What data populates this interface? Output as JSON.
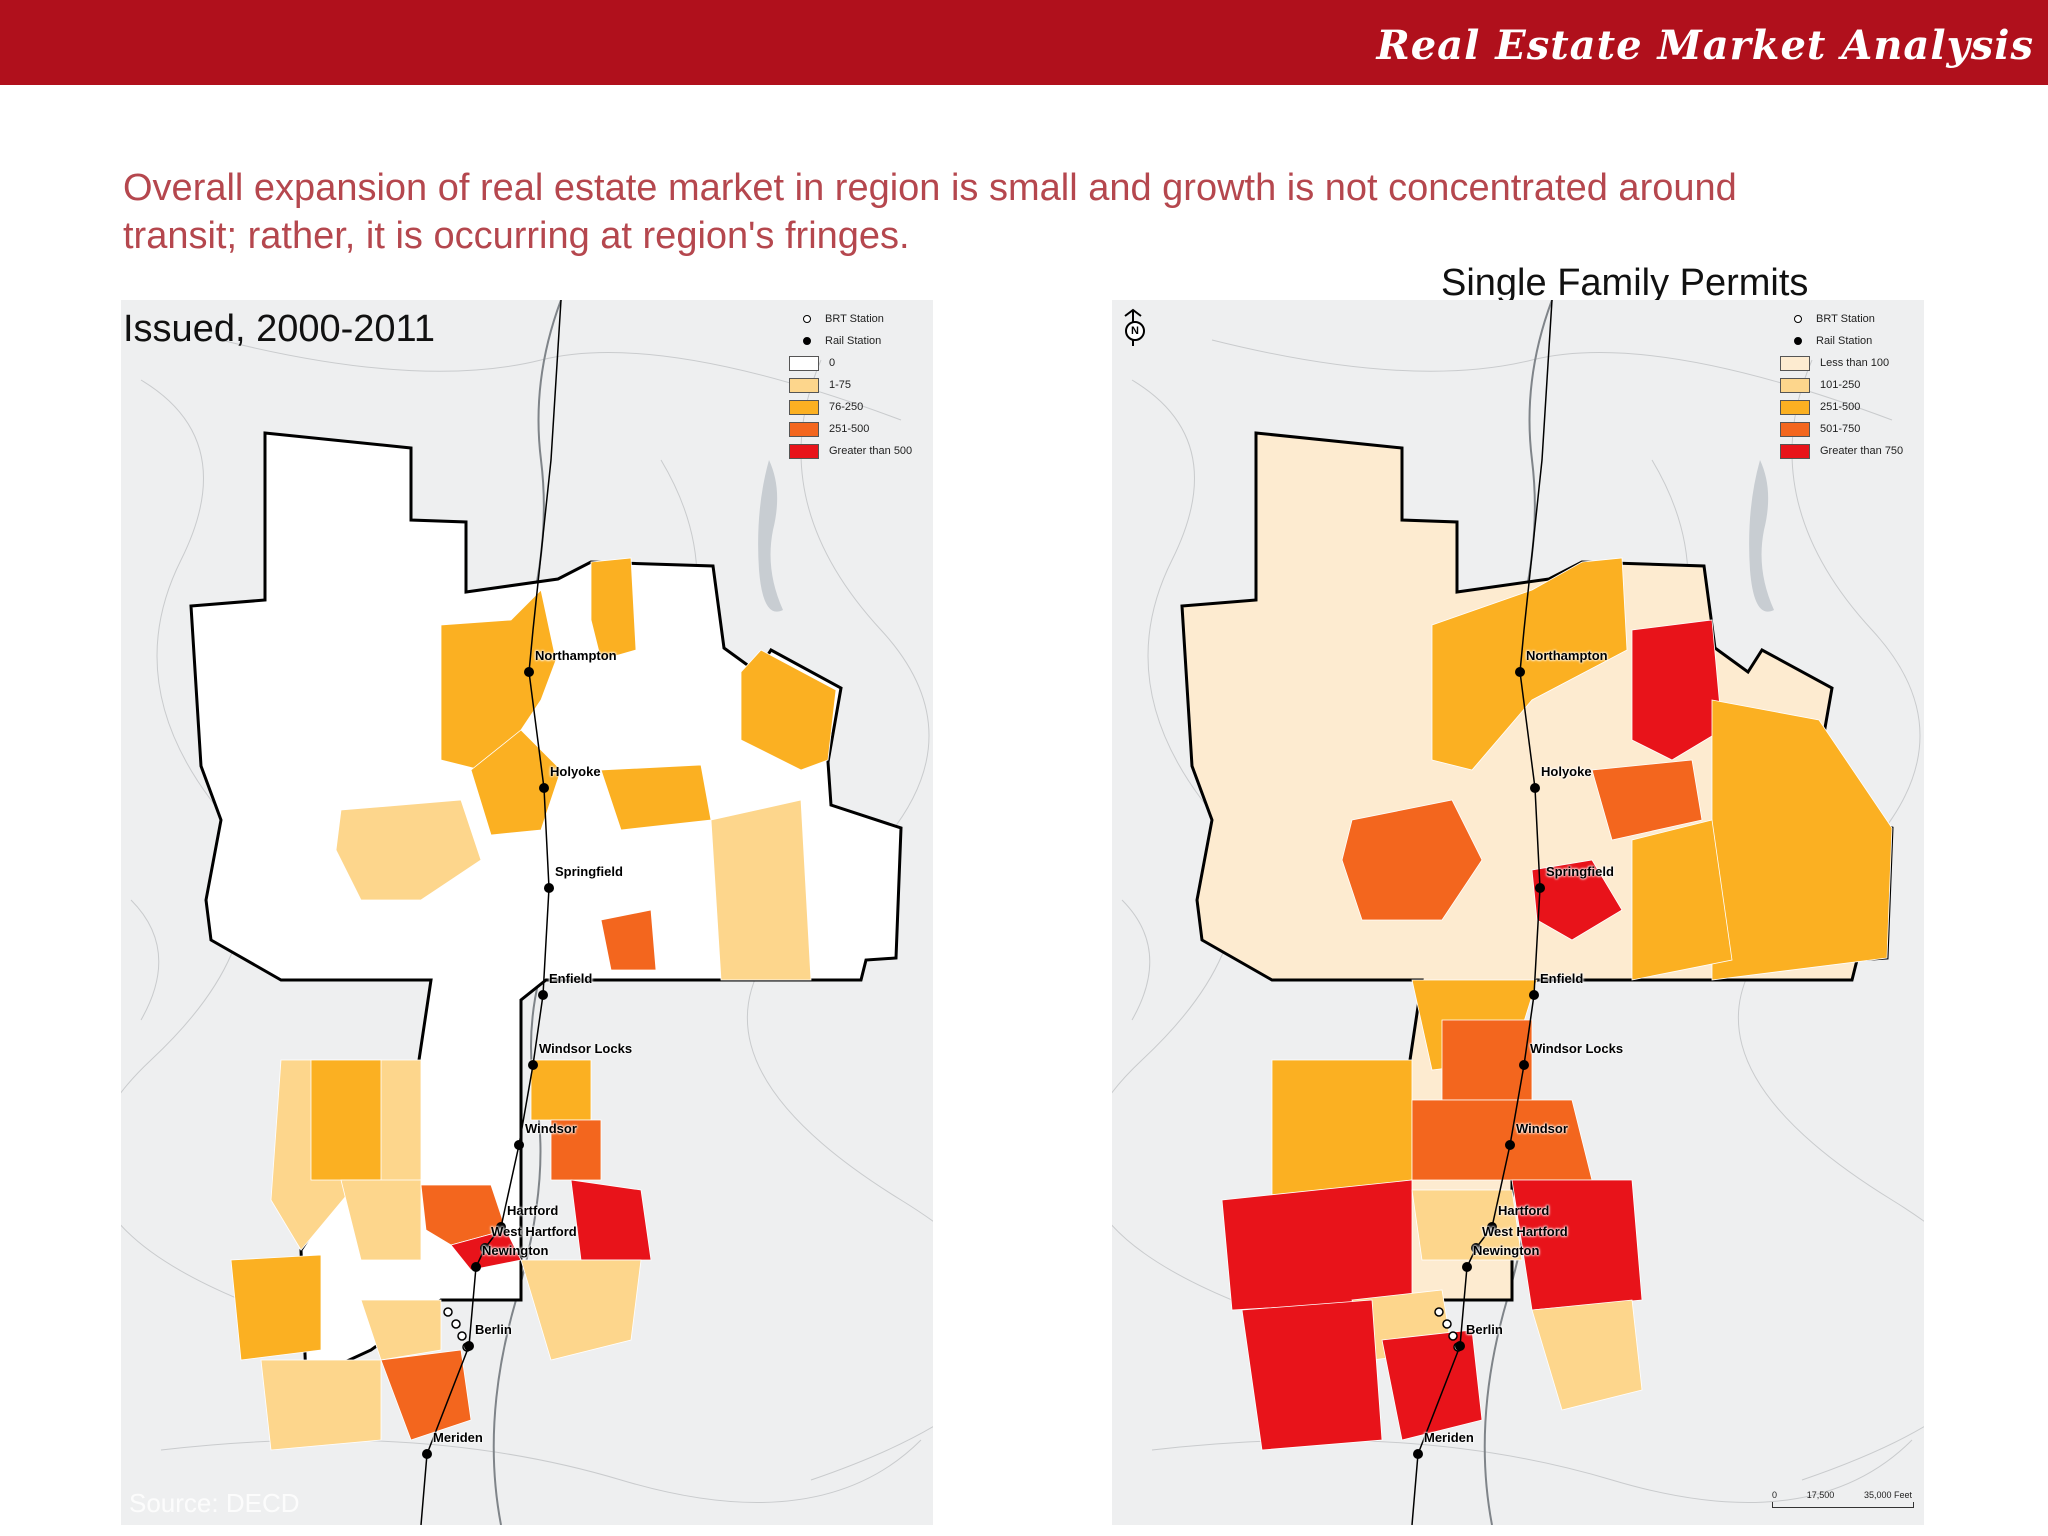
{
  "banner": {
    "title": "Real Estate Market Analysis",
    "color": "#b0101c"
  },
  "headline": "Overall expansion of real estate market in region is small and growth is not concentrated around transit; rather, it is occurring at region's fringes.",
  "subtitle": "Single Family Permits",
  "left_map": {
    "title": "Issued, 2000-2011",
    "source": "Source: DECD",
    "legend": {
      "brt_label": "BRT Station",
      "rail_label": "Rail Station",
      "classes": [
        {
          "label": "0",
          "color": "#ffffff"
        },
        {
          "label": "1-75",
          "color": "#fdd68c"
        },
        {
          "label": "76-250",
          "color": "#fbb022"
        },
        {
          "label": "251-500",
          "color": "#f3661e"
        },
        {
          "label": "Greater than 500",
          "color": "#e8131a"
        }
      ]
    }
  },
  "right_map": {
    "legend": {
      "brt_label": "BRT Station",
      "rail_label": "Rail Station",
      "classes": [
        {
          "label": "Less than 100",
          "color": "#fdebd0"
        },
        {
          "label": "101-250",
          "color": "#fdd68c"
        },
        {
          "label": "251-500",
          "color": "#fbb022"
        },
        {
          "label": "501-750",
          "color": "#f3661e"
        },
        {
          "label": "Greater than 750",
          "color": "#e8131a"
        }
      ]
    },
    "north_letter": "N",
    "scale": {
      "labels": [
        "0",
        "17,500",
        "35,000 Feet"
      ]
    }
  },
  "stations": [
    {
      "name": "Northampton"
    },
    {
      "name": "Holyoke"
    },
    {
      "name": "Springfield"
    },
    {
      "name": "Enfield"
    },
    {
      "name": "Windsor Locks"
    },
    {
      "name": "Windsor"
    },
    {
      "name": "Hartford"
    },
    {
      "name": "West Hartford"
    },
    {
      "name": "Newington"
    },
    {
      "name": "Berlin"
    },
    {
      "name": "Meriden"
    }
  ]
}
